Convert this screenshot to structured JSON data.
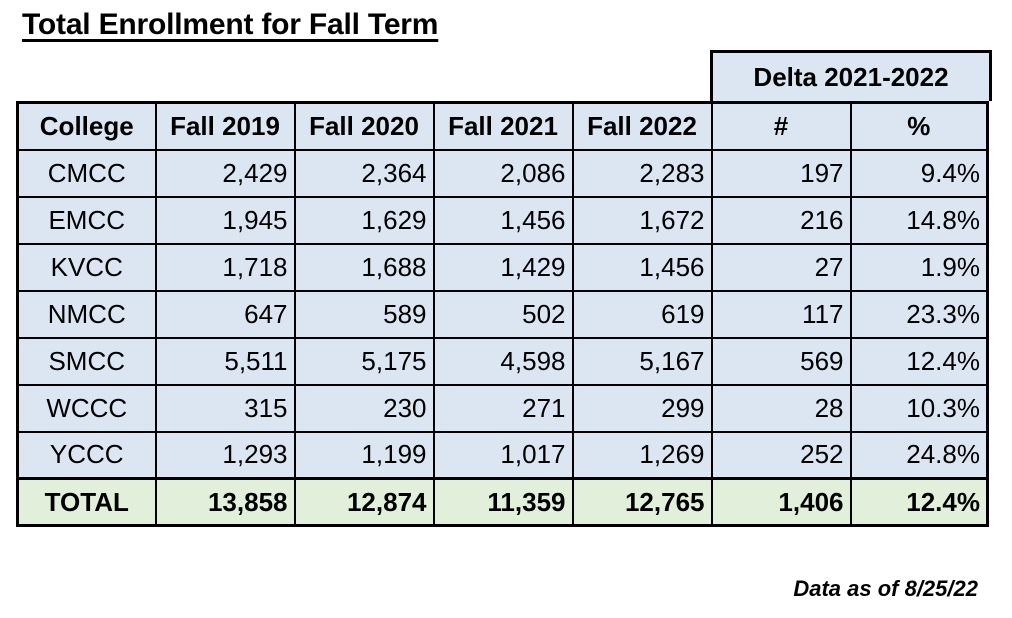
{
  "title": "Total Enrollment for Fall Term",
  "delta_header": "Delta 2021-2022",
  "columns": [
    "College",
    "Fall 2019",
    "Fall 2020",
    "Fall 2021",
    "Fall 2022",
    "#",
    "%"
  ],
  "rows": [
    [
      "CMCC",
      "2,429",
      "2,364",
      "2,086",
      "2,283",
      "197",
      "9.4%"
    ],
    [
      "EMCC",
      "1,945",
      "1,629",
      "1,456",
      "1,672",
      "216",
      "14.8%"
    ],
    [
      "KVCC",
      "1,718",
      "1,688",
      "1,429",
      "1,456",
      "27",
      "1.9%"
    ],
    [
      "NMCC",
      "647",
      "589",
      "502",
      "619",
      "117",
      "23.3%"
    ],
    [
      "SMCC",
      "5,511",
      "5,175",
      "4,598",
      "5,167",
      "569",
      "12.4%"
    ],
    [
      "WCCC",
      "315",
      "230",
      "271",
      "299",
      "28",
      "10.3%"
    ],
    [
      "YCCC",
      "1,293",
      "1,199",
      "1,017",
      "1,269",
      "252",
      "24.8%"
    ]
  ],
  "total": [
    "TOTAL",
    "13,858",
    "12,874",
    "11,359",
    "12,765",
    "1,406",
    "12.4%"
  ],
  "footnote": "Data as of 8/25/22",
  "colors": {
    "header_fill": "#dce6f2",
    "body_fill": "#dce6f2",
    "total_fill": "#e2efda",
    "border": "#000000"
  }
}
